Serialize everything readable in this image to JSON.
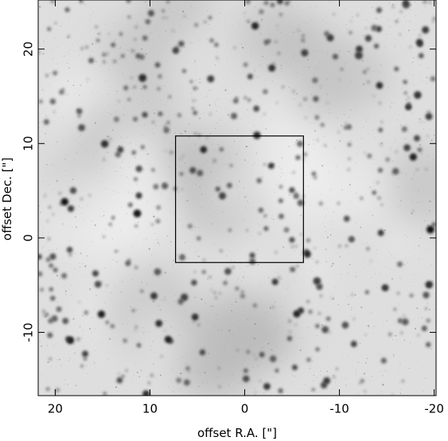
{
  "chart_data": {
    "type": "image",
    "x_label": "offset R.A. [\"]",
    "y_label": "offset Dec. [\"]",
    "xlim": [
      21.8,
      -20.2
    ],
    "ylim": [
      -16.7,
      25.2
    ],
    "xticks": [
      20,
      10,
      0,
      -10,
      -20
    ],
    "yticks": [
      -10,
      0,
      10,
      20
    ],
    "box": {
      "x": [
        7.3,
        -6.2
      ],
      "y": [
        -2.6,
        10.8
      ]
    }
  }
}
